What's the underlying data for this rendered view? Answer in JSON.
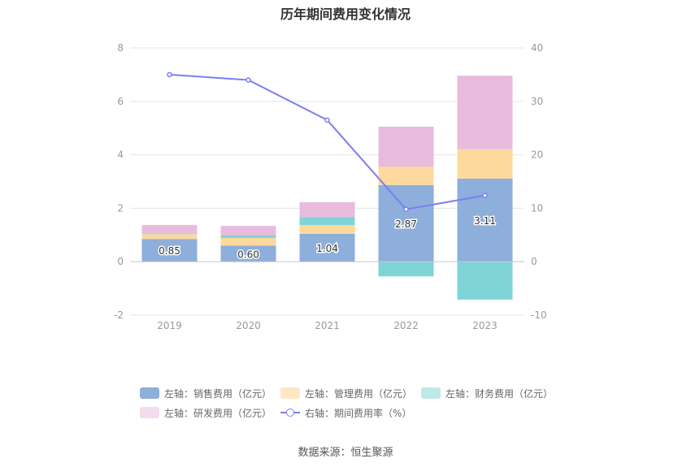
{
  "chart_data": {
    "type": "bar",
    "title": "历年期间费用变化情况",
    "categories": [
      "2019",
      "2020",
      "2021",
      "2022",
      "2023"
    ],
    "left_axis": {
      "ylim": [
        -2,
        8
      ],
      "ticks": [
        "-2",
        "0",
        "2",
        "4",
        "6",
        "8"
      ]
    },
    "right_axis": {
      "ylim": [
        -10,
        40
      ],
      "ticks": [
        "-10",
        "0",
        "10",
        "20",
        "30",
        "40"
      ]
    },
    "grid": true,
    "legend_position": "bottom",
    "series": [
      {
        "name": "左轴：销售费用（亿元）",
        "kind": "bar",
        "axis": "left",
        "color": "#8eaedb",
        "values": [
          0.85,
          0.6,
          1.04,
          2.87,
          3.11
        ],
        "labels": [
          "0.85",
          "0.60",
          "1.04",
          "2.87",
          "3.11"
        ]
      },
      {
        "name": "左轴：管理费用（亿元）",
        "kind": "bar",
        "axis": "left",
        "color": "#fdd99d",
        "values": [
          0.18,
          0.29,
          0.33,
          0.68,
          1.1
        ]
      },
      {
        "name": "左轴：财务费用（亿元）",
        "kind": "bar",
        "axis": "left",
        "color": "#7fd4d6",
        "values": [
          0.02,
          0.1,
          0.3,
          -0.55,
          -1.42
        ]
      },
      {
        "name": "左轴：研发费用（亿元）",
        "kind": "bar",
        "axis": "left",
        "color": "#e8bbdd",
        "values": [
          0.32,
          0.35,
          0.56,
          1.5,
          2.75
        ]
      },
      {
        "name": "右轴：期间费用率（%）",
        "kind": "line",
        "axis": "right",
        "color": "#7b7ff0",
        "values": [
          35.0,
          34.0,
          26.5,
          9.8,
          12.4
        ]
      }
    ],
    "source": "数据来源：恒生聚源"
  }
}
